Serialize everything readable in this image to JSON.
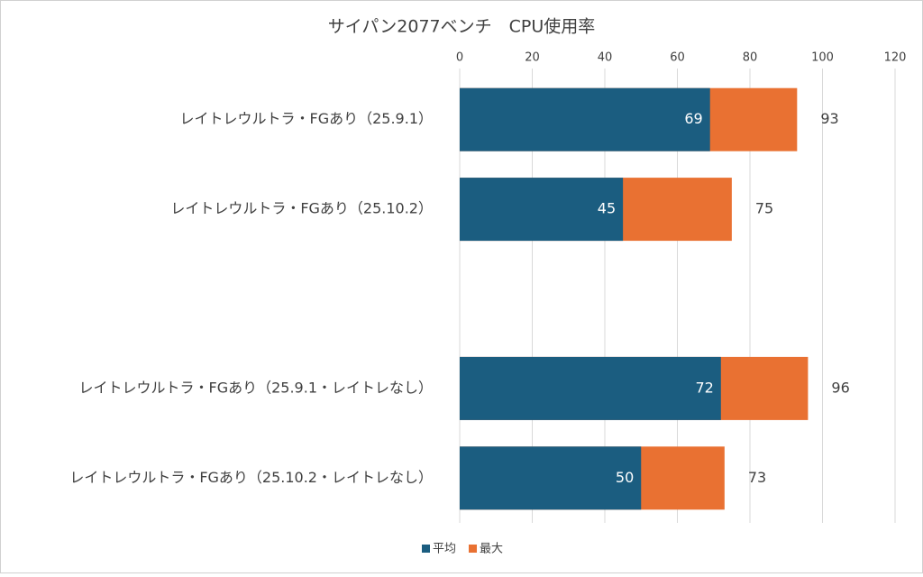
{
  "chart_data": {
    "type": "bar",
    "orientation": "horizontal",
    "overlap": true,
    "title": "サイパン2077ベンチ　CPU使用率",
    "categories": [
      "レイトレウルトラ・FGあり（25.9.1）",
      "レイトレウルトラ・FGあり（25.10.2）",
      null,
      "レイトレウルトラ・FGあり（25.9.1・レイトレなし）",
      "レイトレウルトラ・FGあり（25.10.2・レイトレなし）"
    ],
    "series": [
      {
        "name": "最大",
        "color": "#e97132",
        "values": [
          93,
          75,
          null,
          96,
          73
        ]
      },
      {
        "name": "平均",
        "color": "#1b5d80",
        "values": [
          69,
          45,
          null,
          72,
          50
        ]
      }
    ],
    "xlim": [
      0,
      120
    ],
    "xticks": [
      0,
      20,
      40,
      60,
      80,
      100,
      120
    ],
    "grid": true,
    "legend": "bottom"
  }
}
